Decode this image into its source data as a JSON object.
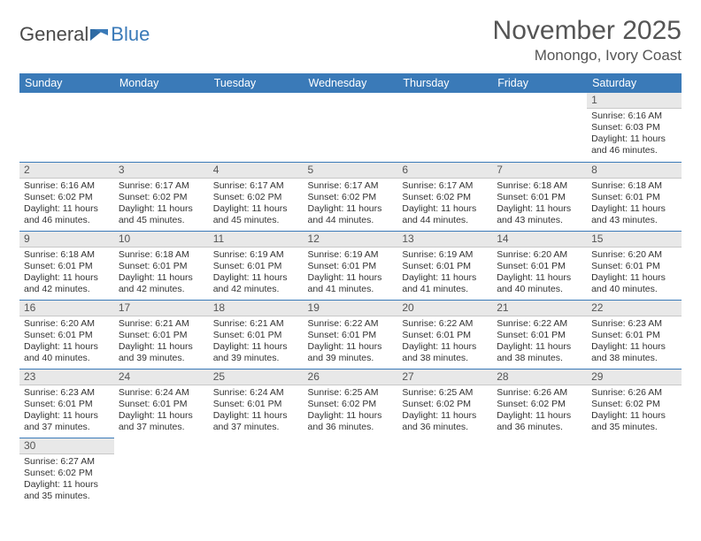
{
  "brand": {
    "word1": "General",
    "word2": "Blue"
  },
  "title": "November 2025",
  "location": "Monongo, Ivory Coast",
  "colors": {
    "header_bg": "#3a7ab8",
    "header_text": "#ffffff",
    "daynum_bg": "#e8e8e8",
    "cell_border": "#3a7ab8",
    "text": "#333333",
    "title_text": "#555555"
  },
  "weekdays": [
    "Sunday",
    "Monday",
    "Tuesday",
    "Wednesday",
    "Thursday",
    "Friday",
    "Saturday"
  ],
  "weeks": [
    [
      null,
      null,
      null,
      null,
      null,
      null,
      {
        "n": "1",
        "sunrise": "Sunrise: 6:16 AM",
        "sunset": "Sunset: 6:03 PM",
        "daylight": "Daylight: 11 hours and 46 minutes."
      }
    ],
    [
      {
        "n": "2",
        "sunrise": "Sunrise: 6:16 AM",
        "sunset": "Sunset: 6:02 PM",
        "daylight": "Daylight: 11 hours and 46 minutes."
      },
      {
        "n": "3",
        "sunrise": "Sunrise: 6:17 AM",
        "sunset": "Sunset: 6:02 PM",
        "daylight": "Daylight: 11 hours and 45 minutes."
      },
      {
        "n": "4",
        "sunrise": "Sunrise: 6:17 AM",
        "sunset": "Sunset: 6:02 PM",
        "daylight": "Daylight: 11 hours and 45 minutes."
      },
      {
        "n": "5",
        "sunrise": "Sunrise: 6:17 AM",
        "sunset": "Sunset: 6:02 PM",
        "daylight": "Daylight: 11 hours and 44 minutes."
      },
      {
        "n": "6",
        "sunrise": "Sunrise: 6:17 AM",
        "sunset": "Sunset: 6:02 PM",
        "daylight": "Daylight: 11 hours and 44 minutes."
      },
      {
        "n": "7",
        "sunrise": "Sunrise: 6:18 AM",
        "sunset": "Sunset: 6:01 PM",
        "daylight": "Daylight: 11 hours and 43 minutes."
      },
      {
        "n": "8",
        "sunrise": "Sunrise: 6:18 AM",
        "sunset": "Sunset: 6:01 PM",
        "daylight": "Daylight: 11 hours and 43 minutes."
      }
    ],
    [
      {
        "n": "9",
        "sunrise": "Sunrise: 6:18 AM",
        "sunset": "Sunset: 6:01 PM",
        "daylight": "Daylight: 11 hours and 42 minutes."
      },
      {
        "n": "10",
        "sunrise": "Sunrise: 6:18 AM",
        "sunset": "Sunset: 6:01 PM",
        "daylight": "Daylight: 11 hours and 42 minutes."
      },
      {
        "n": "11",
        "sunrise": "Sunrise: 6:19 AM",
        "sunset": "Sunset: 6:01 PM",
        "daylight": "Daylight: 11 hours and 42 minutes."
      },
      {
        "n": "12",
        "sunrise": "Sunrise: 6:19 AM",
        "sunset": "Sunset: 6:01 PM",
        "daylight": "Daylight: 11 hours and 41 minutes."
      },
      {
        "n": "13",
        "sunrise": "Sunrise: 6:19 AM",
        "sunset": "Sunset: 6:01 PM",
        "daylight": "Daylight: 11 hours and 41 minutes."
      },
      {
        "n": "14",
        "sunrise": "Sunrise: 6:20 AM",
        "sunset": "Sunset: 6:01 PM",
        "daylight": "Daylight: 11 hours and 40 minutes."
      },
      {
        "n": "15",
        "sunrise": "Sunrise: 6:20 AM",
        "sunset": "Sunset: 6:01 PM",
        "daylight": "Daylight: 11 hours and 40 minutes."
      }
    ],
    [
      {
        "n": "16",
        "sunrise": "Sunrise: 6:20 AM",
        "sunset": "Sunset: 6:01 PM",
        "daylight": "Daylight: 11 hours and 40 minutes."
      },
      {
        "n": "17",
        "sunrise": "Sunrise: 6:21 AM",
        "sunset": "Sunset: 6:01 PM",
        "daylight": "Daylight: 11 hours and 39 minutes."
      },
      {
        "n": "18",
        "sunrise": "Sunrise: 6:21 AM",
        "sunset": "Sunset: 6:01 PM",
        "daylight": "Daylight: 11 hours and 39 minutes."
      },
      {
        "n": "19",
        "sunrise": "Sunrise: 6:22 AM",
        "sunset": "Sunset: 6:01 PM",
        "daylight": "Daylight: 11 hours and 39 minutes."
      },
      {
        "n": "20",
        "sunrise": "Sunrise: 6:22 AM",
        "sunset": "Sunset: 6:01 PM",
        "daylight": "Daylight: 11 hours and 38 minutes."
      },
      {
        "n": "21",
        "sunrise": "Sunrise: 6:22 AM",
        "sunset": "Sunset: 6:01 PM",
        "daylight": "Daylight: 11 hours and 38 minutes."
      },
      {
        "n": "22",
        "sunrise": "Sunrise: 6:23 AM",
        "sunset": "Sunset: 6:01 PM",
        "daylight": "Daylight: 11 hours and 38 minutes."
      }
    ],
    [
      {
        "n": "23",
        "sunrise": "Sunrise: 6:23 AM",
        "sunset": "Sunset: 6:01 PM",
        "daylight": "Daylight: 11 hours and 37 minutes."
      },
      {
        "n": "24",
        "sunrise": "Sunrise: 6:24 AM",
        "sunset": "Sunset: 6:01 PM",
        "daylight": "Daylight: 11 hours and 37 minutes."
      },
      {
        "n": "25",
        "sunrise": "Sunrise: 6:24 AM",
        "sunset": "Sunset: 6:01 PM",
        "daylight": "Daylight: 11 hours and 37 minutes."
      },
      {
        "n": "26",
        "sunrise": "Sunrise: 6:25 AM",
        "sunset": "Sunset: 6:02 PM",
        "daylight": "Daylight: 11 hours and 36 minutes."
      },
      {
        "n": "27",
        "sunrise": "Sunrise: 6:25 AM",
        "sunset": "Sunset: 6:02 PM",
        "daylight": "Daylight: 11 hours and 36 minutes."
      },
      {
        "n": "28",
        "sunrise": "Sunrise: 6:26 AM",
        "sunset": "Sunset: 6:02 PM",
        "daylight": "Daylight: 11 hours and 36 minutes."
      },
      {
        "n": "29",
        "sunrise": "Sunrise: 6:26 AM",
        "sunset": "Sunset: 6:02 PM",
        "daylight": "Daylight: 11 hours and 35 minutes."
      }
    ],
    [
      {
        "n": "30",
        "sunrise": "Sunrise: 6:27 AM",
        "sunset": "Sunset: 6:02 PM",
        "daylight": "Daylight: 11 hours and 35 minutes."
      },
      null,
      null,
      null,
      null,
      null,
      null
    ]
  ]
}
